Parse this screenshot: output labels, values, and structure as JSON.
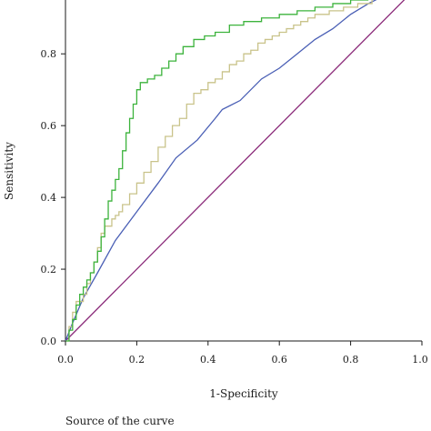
{
  "chart_data": {
    "type": "line",
    "title": "",
    "xlabel": "1-Specificity",
    "ylabel": "Sensitivity",
    "xlim": [
      0,
      1
    ],
    "ylim": [
      0,
      0.95
    ],
    "x_ticks": [
      0.0,
      0.2,
      0.4,
      0.6,
      0.8,
      1.0
    ],
    "x_tick_labels": [
      "0.0",
      "0.2",
      "0.4",
      "0.6",
      "0.8",
      "1.0"
    ],
    "y_ticks": [
      0.0,
      0.2,
      0.4,
      0.6,
      0.8
    ],
    "y_tick_labels": [
      "0.0",
      "0.2",
      "0.4",
      "0.6",
      "0.8"
    ],
    "grid": false,
    "legend_title": "Source of the curve",
    "series": [
      {
        "color": "#3cb33c",
        "step": true,
        "points": [
          [
            0,
            0
          ],
          [
            0.01,
            0.03
          ],
          [
            0.02,
            0.06
          ],
          [
            0.03,
            0.1
          ],
          [
            0.04,
            0.13
          ],
          [
            0.05,
            0.15
          ],
          [
            0.06,
            0.17
          ],
          [
            0.07,
            0.19
          ],
          [
            0.08,
            0.22
          ],
          [
            0.09,
            0.25
          ],
          [
            0.1,
            0.29
          ],
          [
            0.11,
            0.34
          ],
          [
            0.12,
            0.39
          ],
          [
            0.13,
            0.42
          ],
          [
            0.14,
            0.45
          ],
          [
            0.15,
            0.48
          ],
          [
            0.16,
            0.53
          ],
          [
            0.17,
            0.58
          ],
          [
            0.18,
            0.62
          ],
          [
            0.19,
            0.66
          ],
          [
            0.2,
            0.7
          ],
          [
            0.21,
            0.72
          ],
          [
            0.23,
            0.73
          ],
          [
            0.25,
            0.74
          ],
          [
            0.27,
            0.76
          ],
          [
            0.29,
            0.78
          ],
          [
            0.31,
            0.8
          ],
          [
            0.33,
            0.82
          ],
          [
            0.36,
            0.84
          ],
          [
            0.39,
            0.85
          ],
          [
            0.42,
            0.86
          ],
          [
            0.46,
            0.88
          ],
          [
            0.5,
            0.89
          ],
          [
            0.55,
            0.9
          ],
          [
            0.6,
            0.91
          ],
          [
            0.65,
            0.92
          ],
          [
            0.7,
            0.93
          ],
          [
            0.75,
            0.94
          ],
          [
            0.8,
            0.95
          ],
          [
            0.85,
            0.95
          ]
        ]
      },
      {
        "color": "#c9c38a",
        "step": true,
        "points": [
          [
            0,
            0
          ],
          [
            0.01,
            0.04
          ],
          [
            0.02,
            0.08
          ],
          [
            0.03,
            0.11
          ],
          [
            0.05,
            0.13
          ],
          [
            0.06,
            0.16
          ],
          [
            0.07,
            0.19
          ],
          [
            0.08,
            0.22
          ],
          [
            0.09,
            0.26
          ],
          [
            0.1,
            0.3
          ],
          [
            0.11,
            0.32
          ],
          [
            0.13,
            0.34
          ],
          [
            0.14,
            0.35
          ],
          [
            0.15,
            0.36
          ],
          [
            0.16,
            0.38
          ],
          [
            0.18,
            0.41
          ],
          [
            0.2,
            0.44
          ],
          [
            0.22,
            0.47
          ],
          [
            0.24,
            0.5
          ],
          [
            0.26,
            0.54
          ],
          [
            0.28,
            0.57
          ],
          [
            0.3,
            0.6
          ],
          [
            0.32,
            0.62
          ],
          [
            0.34,
            0.66
          ],
          [
            0.36,
            0.69
          ],
          [
            0.38,
            0.7
          ],
          [
            0.4,
            0.72
          ],
          [
            0.42,
            0.73
          ],
          [
            0.44,
            0.75
          ],
          [
            0.46,
            0.77
          ],
          [
            0.48,
            0.78
          ],
          [
            0.5,
            0.8
          ],
          [
            0.52,
            0.81
          ],
          [
            0.54,
            0.83
          ],
          [
            0.56,
            0.84
          ],
          [
            0.58,
            0.85
          ],
          [
            0.6,
            0.86
          ],
          [
            0.62,
            0.87
          ],
          [
            0.64,
            0.88
          ],
          [
            0.66,
            0.89
          ],
          [
            0.68,
            0.9
          ],
          [
            0.7,
            0.91
          ],
          [
            0.74,
            0.92
          ],
          [
            0.78,
            0.93
          ],
          [
            0.82,
            0.94
          ],
          [
            0.86,
            0.95
          ]
        ]
      },
      {
        "color": "#4a5fb5",
        "step": false,
        "points": [
          [
            0,
            0
          ],
          [
            0.02,
            0.05
          ],
          [
            0.05,
            0.12
          ],
          [
            0.09,
            0.19
          ],
          [
            0.14,
            0.28
          ],
          [
            0.2,
            0.36
          ],
          [
            0.26,
            0.44
          ],
          [
            0.31,
            0.51
          ],
          [
            0.37,
            0.56
          ],
          [
            0.42,
            0.62
          ],
          [
            0.44,
            0.645
          ],
          [
            0.49,
            0.67
          ],
          [
            0.55,
            0.73
          ],
          [
            0.6,
            0.76
          ],
          [
            0.65,
            0.8
          ],
          [
            0.7,
            0.84
          ],
          [
            0.75,
            0.87
          ],
          [
            0.8,
            0.91
          ],
          [
            0.85,
            0.94
          ],
          [
            0.88,
            0.955
          ],
          [
            0.92,
            0.965
          ],
          [
            0.96,
            0.97
          ]
        ]
      },
      {
        "color": "#8b2b7a",
        "step": false,
        "points": [
          [
            0,
            0
          ],
          [
            0.96,
            0.96
          ]
        ]
      }
    ]
  }
}
